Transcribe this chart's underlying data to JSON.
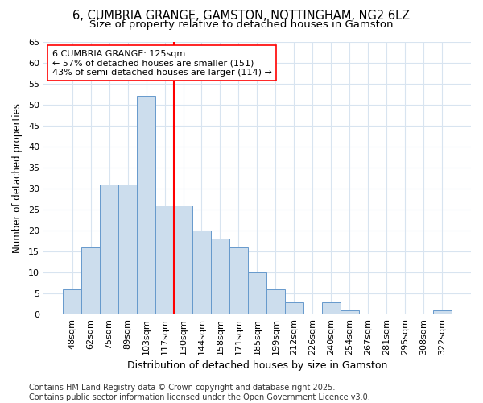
{
  "title": "6, CUMBRIA GRANGE, GAMSTON, NOTTINGHAM, NG2 6LZ",
  "subtitle": "Size of property relative to detached houses in Gamston",
  "xlabel": "Distribution of detached houses by size in Gamston",
  "ylabel": "Number of detached properties",
  "categories": [
    "48sqm",
    "62sqm",
    "75sqm",
    "89sqm",
    "103sqm",
    "117sqm",
    "130sqm",
    "144sqm",
    "158sqm",
    "171sqm",
    "185sqm",
    "199sqm",
    "212sqm",
    "226sqm",
    "240sqm",
    "254sqm",
    "267sqm",
    "281sqm",
    "295sqm",
    "308sqm",
    "322sqm"
  ],
  "values": [
    6,
    16,
    31,
    31,
    52,
    26,
    26,
    20,
    18,
    16,
    10,
    6,
    3,
    0,
    3,
    1,
    0,
    0,
    0,
    0,
    1
  ],
  "bar_color": "#ccdded",
  "bar_edge_color": "#6699cc",
  "vline_x": 5.5,
  "vline_color": "red",
  "annotation_text": "6 CUMBRIA GRANGE: 125sqm\n← 57% of detached houses are smaller (151)\n43% of semi-detached houses are larger (114) →",
  "annotation_box_color": "white",
  "annotation_box_edge": "red",
  "ylim": [
    0,
    65
  ],
  "yticks": [
    0,
    5,
    10,
    15,
    20,
    25,
    30,
    35,
    40,
    45,
    50,
    55,
    60,
    65
  ],
  "background_color": "#ffffff",
  "grid_color": "#d8e4f0",
  "footer_line1": "Contains HM Land Registry data © Crown copyright and database right 2025.",
  "footer_line2": "Contains public sector information licensed under the Open Government Licence v3.0.",
  "title_fontsize": 10.5,
  "subtitle_fontsize": 9.5,
  "xlabel_fontsize": 9,
  "ylabel_fontsize": 8.5,
  "tick_fontsize": 8,
  "annotation_fontsize": 8,
  "footer_fontsize": 7
}
